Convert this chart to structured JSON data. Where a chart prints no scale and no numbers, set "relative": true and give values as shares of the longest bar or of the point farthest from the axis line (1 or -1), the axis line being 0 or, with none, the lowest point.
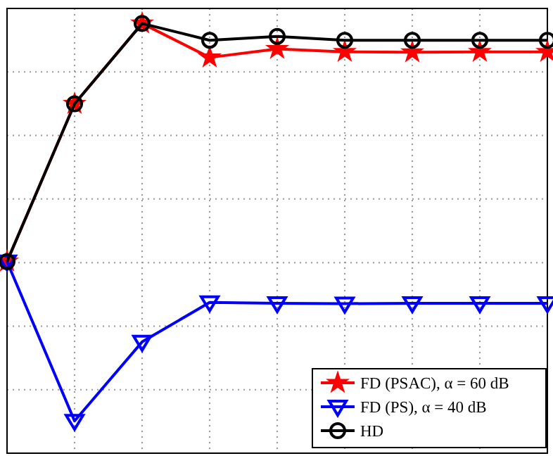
{
  "chart_data": {
    "type": "line",
    "relative": true,
    "grid": true,
    "legend": "bottom right",
    "categories": [
      null,
      null,
      null,
      null,
      null,
      null,
      null,
      null,
      null
    ],
    "series": [
      {
        "name": "FD (PSAC), α = 60 dB",
        "color": "#ff0000",
        "marker": "star",
        "values": [
          0.446,
          0.813,
          1,
          0.921,
          0.941,
          0.934,
          0.933,
          0.934,
          0.934
        ]
      },
      {
        "name": "FD (PS), α = 40 dB",
        "color": "#0000ff",
        "marker": "triangle",
        "values": [
          0.446,
          0.075,
          0.259,
          0.351,
          0.349,
          0.348,
          0.349,
          0.349,
          0.349
        ]
      },
      {
        "name": "HD",
        "color": "#000000",
        "marker": "circle",
        "values": [
          0.446,
          0.813,
          1,
          0.961,
          0.97,
          0.961,
          0.961,
          0.961,
          0.961
        ]
      }
    ]
  }
}
